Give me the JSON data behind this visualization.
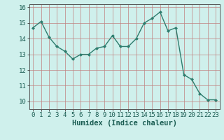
{
  "x": [
    0,
    1,
    2,
    3,
    4,
    5,
    6,
    7,
    8,
    9,
    10,
    11,
    12,
    13,
    14,
    15,
    16,
    17,
    18,
    19,
    20,
    21,
    22,
    23
  ],
  "y": [
    14.7,
    15.1,
    14.1,
    13.5,
    13.2,
    12.7,
    13.0,
    13.0,
    13.4,
    13.5,
    14.2,
    13.5,
    13.5,
    14.0,
    15.0,
    15.3,
    15.7,
    14.5,
    14.7,
    11.7,
    11.4,
    10.5,
    10.1,
    10.1
  ],
  "line_color": "#2e7d6e",
  "marker": "D",
  "marker_size": 2.0,
  "bg_color": "#cff0ec",
  "grid_color_major": "#b0b0b0",
  "grid_color_minor": "#d0d0d0",
  "xlabel": "Humidex (Indice chaleur)",
  "xlabel_fontsize": 7.5,
  "xlim": [
    -0.5,
    23.5
  ],
  "ylim": [
    9.5,
    16.2
  ],
  "yticks": [
    10,
    11,
    12,
    13,
    14,
    15,
    16
  ],
  "xtick_labels": [
    "0",
    "1",
    "2",
    "3",
    "4",
    "5",
    "6",
    "7",
    "8",
    "9",
    "10",
    "11",
    "12",
    "13",
    "14",
    "15",
    "16",
    "17",
    "18",
    "19",
    "20",
    "21",
    "22",
    "23"
  ],
  "tick_fontsize": 6.5,
  "linewidth": 1.0
}
